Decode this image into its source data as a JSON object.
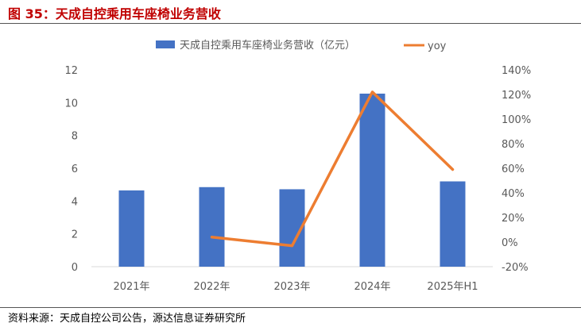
{
  "header": {
    "title": "图 35：天成自控乘用车座椅业务营收"
  },
  "footer": {
    "source": "资料来源：天成自控公司公告，源达信息证券研究所"
  },
  "colors": {
    "bar": "#4472C4",
    "line": "#ED7D31",
    "title": "#C00000"
  },
  "chart_data": {
    "type": "bar",
    "categories": [
      "2021年",
      "2022年",
      "2023年",
      "2024年",
      "2025年H1"
    ],
    "series": [
      {
        "name": "天成自控乘用车座椅业务营收（亿元）",
        "type": "bar",
        "axis": "left",
        "values": [
          4.65,
          4.85,
          4.72,
          10.55,
          5.2
        ]
      },
      {
        "name": "yoy",
        "type": "line",
        "axis": "right",
        "values": [
          null,
          4,
          -3,
          122,
          59
        ]
      }
    ],
    "ylim_left": [
      0,
      12
    ],
    "yticks_left": [
      "0",
      "2",
      "4",
      "6",
      "8",
      "10",
      "12"
    ],
    "ylim_right": [
      -20,
      140
    ],
    "yticks_right": [
      "-20%",
      "0%",
      "20%",
      "40%",
      "60%",
      "80%",
      "100%",
      "120%",
      "140%"
    ],
    "grid": false,
    "legend_position": "top"
  }
}
